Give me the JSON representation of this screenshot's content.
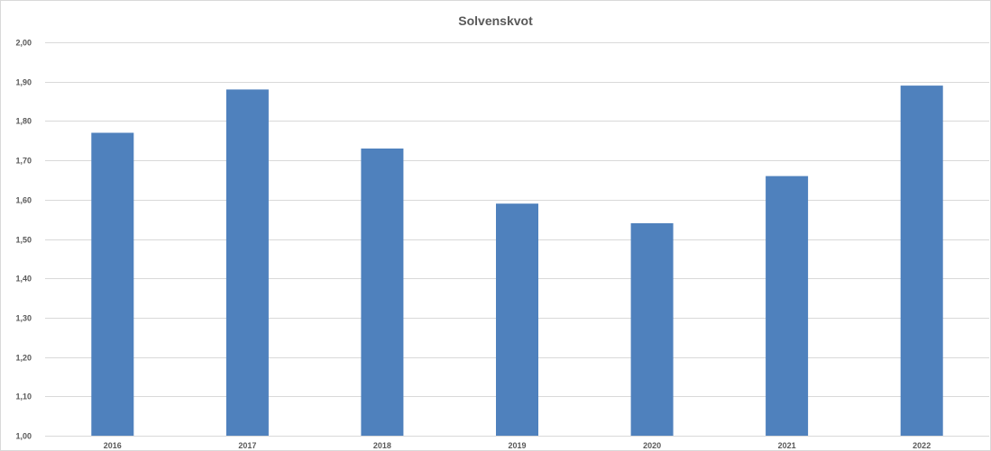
{
  "chart_data": {
    "type": "bar",
    "title": "Solvenskvot",
    "xlabel": "",
    "ylabel": "",
    "categories": [
      "2016",
      "2017",
      "2018",
      "2019",
      "2020",
      "2021",
      "2022"
    ],
    "values": [
      1.77,
      1.88,
      1.73,
      1.59,
      1.54,
      1.66,
      1.89
    ],
    "ylim": [
      1.0,
      2.0
    ],
    "yticks": [
      1.0,
      1.1,
      1.2,
      1.3,
      1.4,
      1.5,
      1.6,
      1.7,
      1.8,
      1.9,
      2.0
    ],
    "ytick_labels": [
      "1,00",
      "1,10",
      "1,20",
      "1,30",
      "1,40",
      "1,50",
      "1,60",
      "1,70",
      "1,80",
      "1,90",
      "2,00"
    ],
    "grid": true,
    "legend": "none",
    "colors": {
      "bar": "#4f81bd",
      "grid": "#d9d9d9",
      "text": "#595959"
    }
  }
}
